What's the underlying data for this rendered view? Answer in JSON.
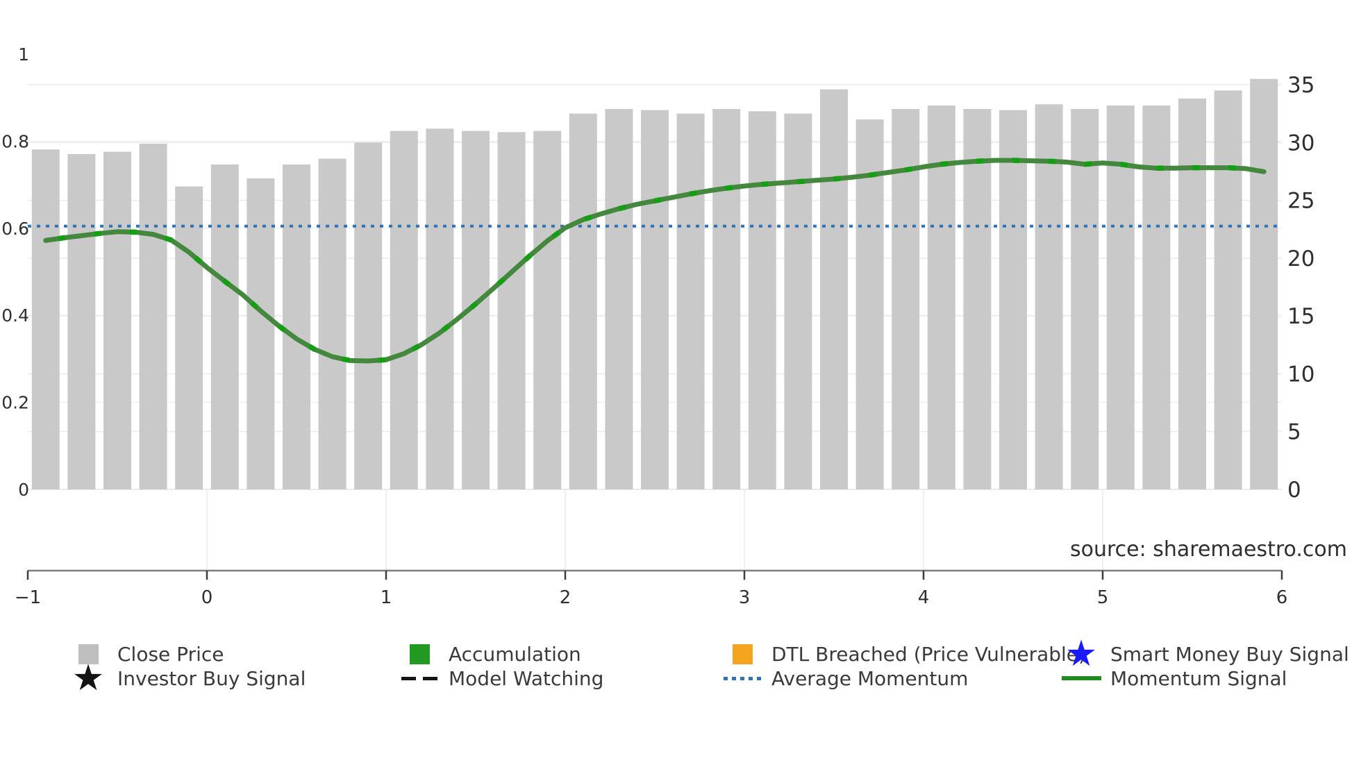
{
  "chart_data": {
    "type": "bar+line",
    "title": "",
    "source": "source: sharemaestro.com",
    "x_axis": {
      "min": -1,
      "max": 6,
      "ticks": [
        -1,
        0,
        1,
        2,
        3,
        4,
        5,
        6
      ],
      "labels": [
        "−1",
        "0",
        "1",
        "2",
        "3",
        "4",
        "5",
        "6"
      ]
    },
    "left_axis": {
      "min": 0,
      "max": 1,
      "ticks": [
        0,
        0.2,
        0.4,
        0.6,
        0.8,
        1
      ],
      "labels": [
        "0",
        "0.2",
        "0.4",
        "0.6",
        "0.8",
        "1"
      ]
    },
    "right_axis": {
      "min": 0,
      "max": 35,
      "ticks": [
        0,
        5,
        10,
        15,
        20,
        25,
        30,
        35
      ],
      "labels": [
        "0",
        "5",
        "10",
        "15",
        "20",
        "25",
        "30",
        "35"
      ]
    },
    "bars": {
      "name": "Close Price",
      "color": "#c9c9c9",
      "axis": "right",
      "x": [
        -0.9,
        -0.7,
        -0.5,
        -0.3,
        -0.1,
        0.1,
        0.3,
        0.5,
        0.7,
        0.9,
        1.1,
        1.3,
        1.5,
        1.7,
        1.9,
        2.1,
        2.3,
        2.5,
        2.7,
        2.9,
        3.1,
        3.3,
        3.5,
        3.7,
        3.9,
        4.1,
        4.3,
        4.5,
        4.7,
        4.9,
        5.1,
        5.3,
        5.5,
        5.7,
        5.9
      ],
      "values": [
        29.4,
        29.0,
        29.2,
        29.9,
        26.2,
        28.1,
        26.9,
        28.1,
        28.6,
        30.0,
        31.0,
        31.2,
        31.0,
        30.9,
        31.0,
        32.5,
        32.9,
        32.8,
        32.5,
        32.9,
        32.7,
        32.5,
        34.6,
        32.0,
        32.9,
        33.2,
        32.9,
        32.8,
        33.3,
        32.9,
        33.2,
        33.2,
        33.8,
        34.5,
        35.5
      ]
    },
    "momentum": {
      "name": "Momentum Signal",
      "color": "#44883e",
      "accent_name": "Accumulation",
      "accent_color": "#12a012",
      "axis": "left",
      "points": [
        [
          -0.9,
          0.572
        ],
        [
          -0.8,
          0.578
        ],
        [
          -0.7,
          0.583
        ],
        [
          -0.6,
          0.588
        ],
        [
          -0.5,
          0.592
        ],
        [
          -0.4,
          0.591
        ],
        [
          -0.3,
          0.586
        ],
        [
          -0.2,
          0.573
        ],
        [
          -0.1,
          0.545
        ],
        [
          0,
          0.51
        ],
        [
          0.1,
          0.478
        ],
        [
          0.2,
          0.447
        ],
        [
          0.3,
          0.41
        ],
        [
          0.4,
          0.376
        ],
        [
          0.5,
          0.346
        ],
        [
          0.6,
          0.322
        ],
        [
          0.7,
          0.305
        ],
        [
          0.8,
          0.296
        ],
        [
          0.9,
          0.295
        ],
        [
          1,
          0.298
        ],
        [
          1.1,
          0.312
        ],
        [
          1.2,
          0.333
        ],
        [
          1.3,
          0.36
        ],
        [
          1.4,
          0.392
        ],
        [
          1.5,
          0.426
        ],
        [
          1.6,
          0.462
        ],
        [
          1.7,
          0.499
        ],
        [
          1.8,
          0.536
        ],
        [
          1.9,
          0.571
        ],
        [
          2,
          0.601
        ],
        [
          2.1,
          0.62
        ],
        [
          2.2,
          0.633
        ],
        [
          2.3,
          0.645
        ],
        [
          2.4,
          0.655
        ],
        [
          2.5,
          0.663
        ],
        [
          2.6,
          0.671
        ],
        [
          2.7,
          0.679
        ],
        [
          2.8,
          0.686
        ],
        [
          2.9,
          0.692
        ],
        [
          3,
          0.697
        ],
        [
          3.1,
          0.701
        ],
        [
          3.2,
          0.704
        ],
        [
          3.3,
          0.707
        ],
        [
          3.4,
          0.71
        ],
        [
          3.5,
          0.713
        ],
        [
          3.6,
          0.717
        ],
        [
          3.7,
          0.722
        ],
        [
          3.8,
          0.728
        ],
        [
          3.9,
          0.734
        ],
        [
          4,
          0.741
        ],
        [
          4.1,
          0.747
        ],
        [
          4.2,
          0.751
        ],
        [
          4.3,
          0.754
        ],
        [
          4.4,
          0.756
        ],
        [
          4.5,
          0.756
        ],
        [
          4.6,
          0.755
        ],
        [
          4.7,
          0.754
        ],
        [
          4.8,
          0.752
        ],
        [
          4.9,
          0.747
        ],
        [
          5,
          0.75
        ],
        [
          5.1,
          0.747
        ],
        [
          5.2,
          0.741
        ],
        [
          5.3,
          0.738
        ],
        [
          5.4,
          0.738
        ],
        [
          5.5,
          0.739
        ],
        [
          5.6,
          0.739
        ],
        [
          5.7,
          0.739
        ],
        [
          5.8,
          0.737
        ],
        [
          5.9,
          0.73
        ]
      ]
    },
    "average_momentum": {
      "name": "Average Momentum",
      "color": "#2e74b5",
      "axis": "left",
      "value": 0.605
    }
  },
  "legend": {
    "items": [
      {
        "label": "Close Price",
        "swatch": "square",
        "color": "#bfbfbf"
      },
      {
        "label": "Accumulation",
        "swatch": "square",
        "color": "#229a22"
      },
      {
        "label": "DTL Breached (Price Vulnerable)",
        "swatch": "square",
        "color": "#f5a41f"
      },
      {
        "label": "Smart Money Buy Signal",
        "swatch": "star",
        "color": "#1a1aff"
      },
      {
        "label": "Investor Buy Signal",
        "swatch": "star",
        "color": "#141414"
      },
      {
        "label": "Model Watching",
        "swatch": "dashes",
        "color": "#141414"
      },
      {
        "label": "Average Momentum",
        "swatch": "dotted",
        "color": "#2e74b5"
      },
      {
        "label": "Momentum Signal",
        "swatch": "line",
        "color": "#1f8b1f"
      }
    ]
  }
}
